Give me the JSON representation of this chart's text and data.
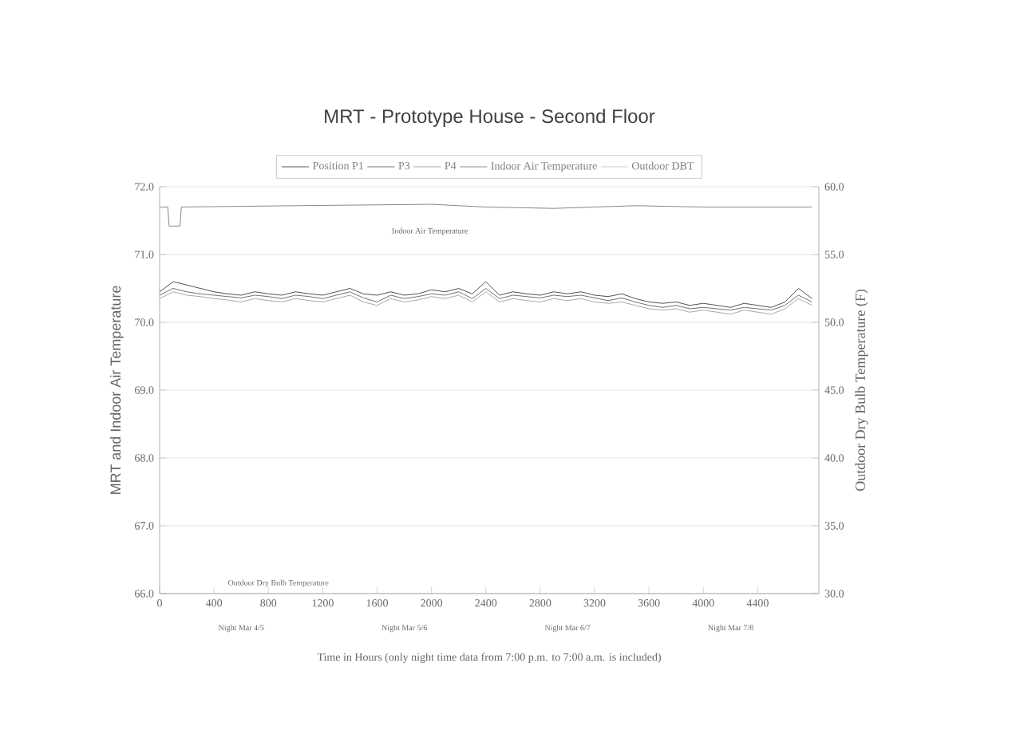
{
  "chart_data": {
    "type": "line",
    "title": "MRT - Prototype House - Second Floor",
    "xlabel": "Time in Hours (only night time data from 7:00 p.m. to 7:00 a.m. is included)",
    "ylabel": "MRT and Indoor Air Temperature",
    "y2label": "Outdoor Dry Bulb Temperature (F)",
    "x": [
      0,
      100,
      200,
      300,
      400,
      500,
      600,
      700,
      800,
      900,
      1000,
      1100,
      1200,
      1300,
      1400,
      1500,
      1600,
      1700,
      1800,
      1900,
      2000,
      2100,
      2200,
      2300,
      2400,
      2500,
      2600,
      2700,
      2800,
      2900,
      3000,
      3100,
      3200,
      3300,
      3400,
      3500,
      3600,
      3700,
      3800,
      3900,
      4000,
      4100,
      4200,
      4300,
      4400,
      4500,
      4600,
      4700,
      4800
    ],
    "series": [
      {
        "name": "Position P1",
        "color": "#505050",
        "values": [
          70.45,
          70.6,
          70.55,
          70.5,
          70.45,
          70.42,
          70.4,
          70.45,
          70.42,
          70.4,
          70.45,
          70.42,
          70.4,
          70.45,
          70.5,
          70.42,
          70.4,
          70.45,
          70.4,
          70.42,
          70.48,
          70.45,
          70.5,
          70.42,
          70.6,
          70.4,
          70.45,
          70.42,
          70.4,
          70.45,
          70.42,
          70.45,
          70.4,
          70.38,
          70.42,
          70.35,
          70.3,
          70.28,
          70.3,
          70.25,
          70.28,
          70.25,
          70.22,
          70.28,
          70.25,
          70.22,
          70.3,
          70.5,
          70.35
        ]
      },
      {
        "name": "P3",
        "color": "#707070",
        "values": [
          70.4,
          70.5,
          70.45,
          70.42,
          70.4,
          70.38,
          70.36,
          70.4,
          70.38,
          70.35,
          70.4,
          70.38,
          70.35,
          70.4,
          70.45,
          70.36,
          70.3,
          70.4,
          70.35,
          70.38,
          70.42,
          70.4,
          70.45,
          70.35,
          70.5,
          70.35,
          70.4,
          70.38,
          70.36,
          70.4,
          70.38,
          70.4,
          70.36,
          70.32,
          70.36,
          70.3,
          70.25,
          70.22,
          70.25,
          70.2,
          70.22,
          70.2,
          70.18,
          70.22,
          70.2,
          70.18,
          70.25,
          70.4,
          70.3
        ]
      },
      {
        "name": "P4",
        "color": "#a8a8a8",
        "values": [
          70.35,
          70.45,
          70.4,
          70.38,
          70.35,
          70.33,
          70.3,
          70.35,
          70.32,
          70.3,
          70.35,
          70.32,
          70.3,
          70.35,
          70.4,
          70.3,
          70.25,
          70.35,
          70.3,
          70.33,
          70.38,
          70.35,
          70.4,
          70.3,
          70.45,
          70.3,
          70.35,
          70.32,
          70.3,
          70.35,
          70.32,
          70.35,
          70.3,
          70.28,
          70.3,
          70.25,
          70.2,
          70.18,
          70.2,
          70.15,
          70.18,
          70.15,
          70.12,
          70.18,
          70.15,
          70.12,
          70.2,
          70.35,
          70.25
        ]
      },
      {
        "name": "Indoor Air Temperature",
        "color": "#888888",
        "x": [
          0,
          60,
          70,
          150,
          160,
          1000,
          2000,
          2400,
          2900,
          3500,
          4000,
          4800
        ],
        "values": [
          71.7,
          71.7,
          71.42,
          71.42,
          71.7,
          71.72,
          71.74,
          71.7,
          71.68,
          71.72,
          71.7,
          71.7
        ]
      },
      {
        "name": "Outdoor DBT",
        "color": "#c0c0c0",
        "axis": "y2",
        "values": [
          null,
          null,
          null,
          null,
          null,
          null,
          null,
          null,
          null,
          null,
          null,
          null,
          null,
          null,
          null,
          null,
          null,
          null,
          null,
          null,
          null,
          null,
          null,
          null,
          null,
          null,
          null,
          null,
          null,
          null,
          null,
          null,
          null,
          null,
          null,
          null,
          null,
          null,
          null,
          null,
          null,
          null,
          null,
          null,
          null,
          null,
          null,
          null,
          null
        ]
      }
    ],
    "xlim": [
      0,
      4850
    ],
    "xticks": [
      0,
      400,
      800,
      1200,
      1600,
      2000,
      2400,
      2800,
      3200,
      3600,
      4000,
      4400
    ],
    "ylim": [
      66,
      72
    ],
    "yticks": [
      {
        "value": 66,
        "label": "66.0"
      },
      {
        "value": 67,
        "label": "67.0"
      },
      {
        "value": 68,
        "label": "68.0"
      },
      {
        "value": 69,
        "label": "69.0"
      },
      {
        "value": 70,
        "label": "70.0"
      },
      {
        "value": 71,
        "label": "71.0"
      },
      {
        "value": 72,
        "label": "72.0"
      }
    ],
    "y2lim": [
      30,
      60
    ],
    "y2ticks": [
      {
        "value": 30,
        "label": "30.0"
      },
      {
        "value": 35,
        "label": "35.0"
      },
      {
        "value": 40,
        "label": "40.0"
      },
      {
        "value": 45,
        "label": "45.0"
      },
      {
        "value": 50,
        "label": "50.0"
      },
      {
        "value": 55,
        "label": "55.0"
      },
      {
        "value": 60,
        "label": "60.0"
      }
    ],
    "annotations": [
      "Indoor Air Temperature",
      "Outdoor Dry Bulb Temperature",
      "Night Mar 4/5",
      "Night Mar 5/6",
      "Night Mar 6/7",
      "Night Mar 7/8"
    ],
    "grid": "y",
    "legend": "top",
    "marker": "none",
    "line_style": "solid"
  }
}
